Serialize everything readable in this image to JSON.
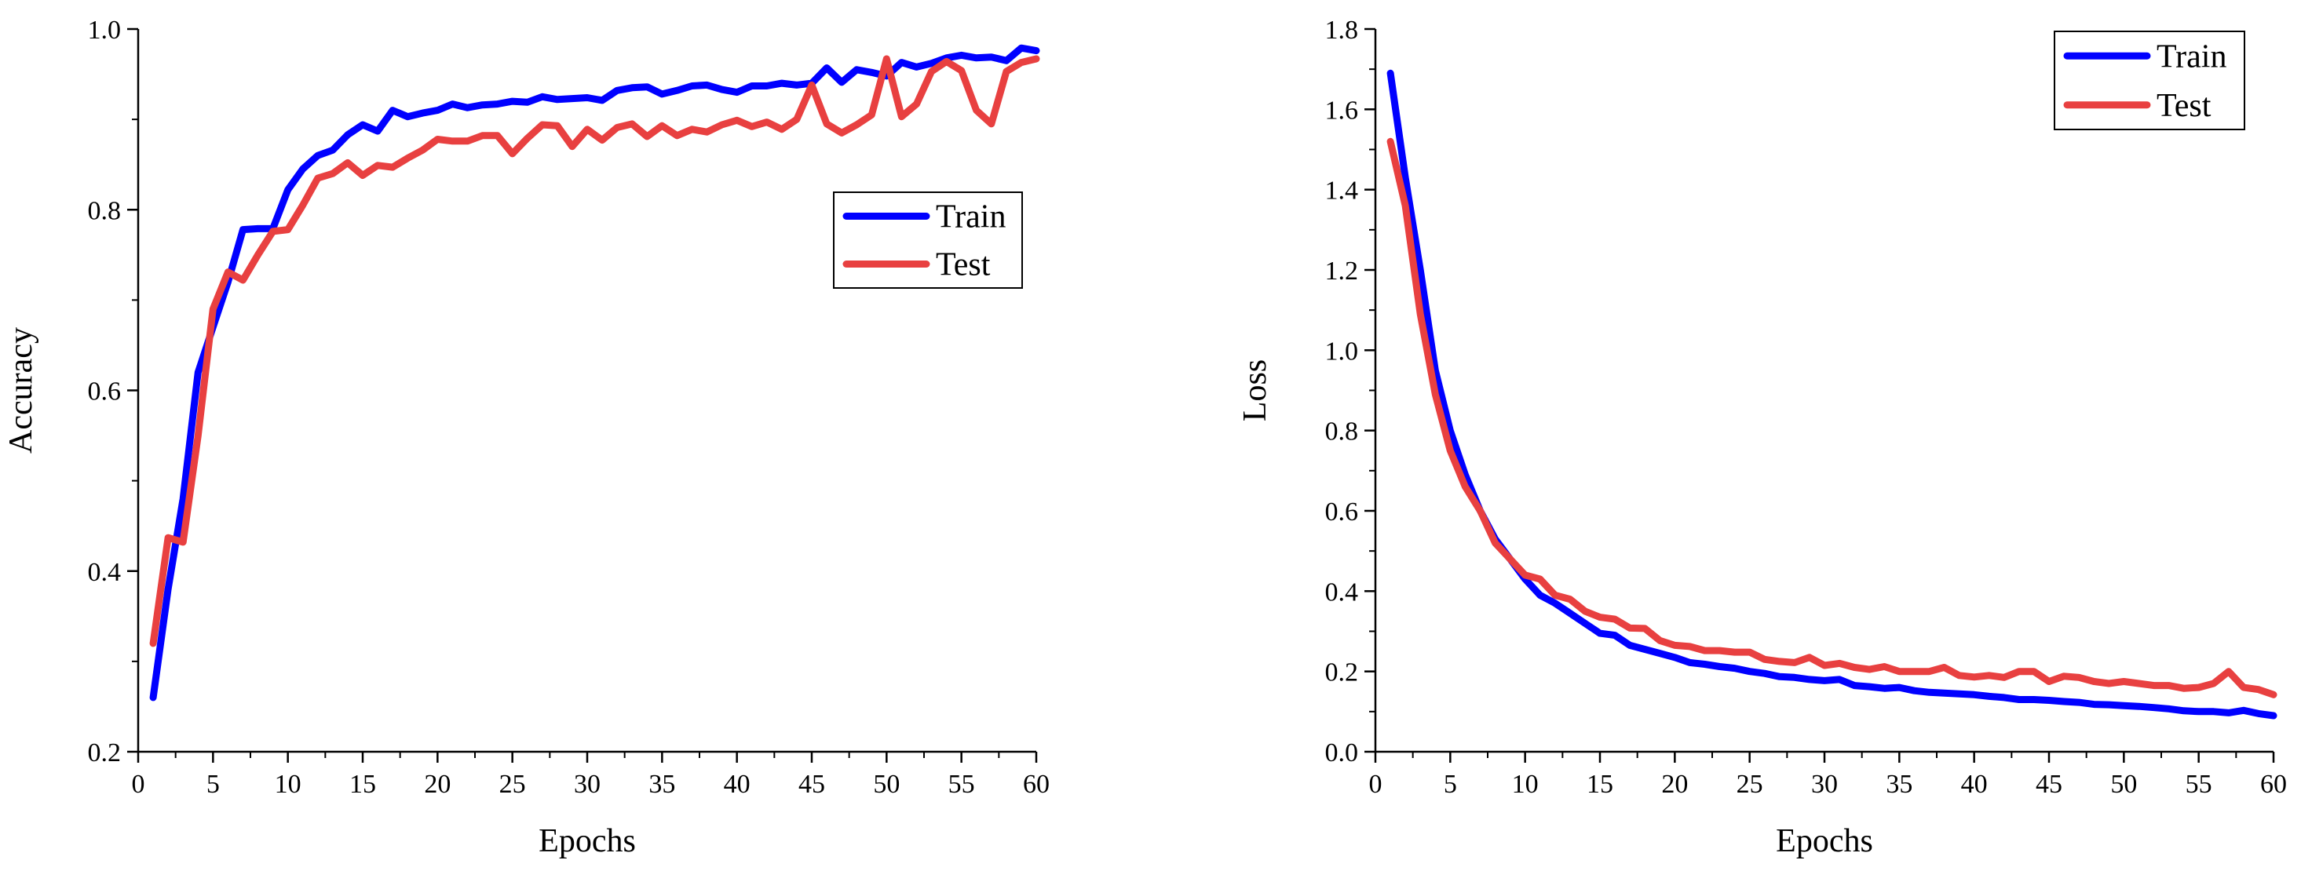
{
  "chart_data": [
    {
      "type": "line",
      "xlabel": "Epochs",
      "ylabel": "Accuracy",
      "xlim": [
        0,
        60
      ],
      "ylim": [
        0.2,
        1.0
      ],
      "x_ticks": [
        0,
        5,
        10,
        15,
        20,
        25,
        30,
        35,
        40,
        45,
        50,
        55,
        60
      ],
      "y_ticks": [
        0.2,
        0.4,
        0.6,
        0.8,
        1.0
      ],
      "x_tick_labels": [
        "0",
        "5",
        "10",
        "15",
        "20",
        "25",
        "30",
        "35",
        "40",
        "45",
        "50",
        "55",
        "60"
      ],
      "y_tick_labels": [
        "0.2",
        "0.4",
        "0.6",
        "0.8",
        "1.0"
      ],
      "grid": false,
      "legend_position": "right-center",
      "x": [
        1,
        2,
        3,
        4,
        5,
        6,
        7,
        8,
        9,
        10,
        11,
        12,
        13,
        14,
        15,
        16,
        17,
        18,
        19,
        20,
        21,
        22,
        23,
        24,
        25,
        26,
        27,
        28,
        29,
        30,
        31,
        32,
        33,
        34,
        35,
        36,
        37,
        38,
        39,
        40,
        41,
        42,
        43,
        44,
        45,
        46,
        47,
        48,
        49,
        50,
        51,
        52,
        53,
        54,
        55,
        56,
        57,
        58,
        59,
        60
      ],
      "series": [
        {
          "name": "Train",
          "color": "#0000ff",
          "values": [
            0.26,
            0.38,
            0.48,
            0.62,
            0.67,
            0.72,
            0.778,
            0.779,
            0.779,
            0.822,
            0.845,
            0.86,
            0.866,
            0.883,
            0.894,
            0.887,
            0.91,
            0.903,
            0.907,
            0.91,
            0.917,
            0.913,
            0.916,
            0.917,
            0.92,
            0.919,
            0.925,
            0.922,
            0.923,
            0.924,
            0.921,
            0.932,
            0.935,
            0.936,
            0.928,
            0.932,
            0.937,
            0.938,
            0.933,
            0.93,
            0.937,
            0.937,
            0.94,
            0.938,
            0.94,
            0.957,
            0.941,
            0.955,
            0.952,
            0.948,
            0.963,
            0.958,
            0.962,
            0.968,
            0.971,
            0.968,
            0.969,
            0.965,
            0.979,
            0.976
          ]
        },
        {
          "name": "Test",
          "color": "#e84040",
          "values": [
            0.32,
            0.437,
            0.432,
            0.55,
            0.69,
            0.731,
            0.722,
            0.75,
            0.776,
            0.778,
            0.805,
            0.835,
            0.84,
            0.852,
            0.838,
            0.849,
            0.847,
            0.857,
            0.866,
            0.878,
            0.876,
            0.876,
            0.882,
            0.882,
            0.862,
            0.879,
            0.894,
            0.893,
            0.87,
            0.889,
            0.877,
            0.891,
            0.895,
            0.881,
            0.893,
            0.882,
            0.889,
            0.886,
            0.894,
            0.899,
            0.892,
            0.897,
            0.889,
            0.9,
            0.938,
            0.895,
            0.885,
            0.894,
            0.905,
            0.967,
            0.903,
            0.917,
            0.953,
            0.964,
            0.954,
            0.91,
            0.895,
            0.953,
            0.963,
            0.967
          ]
        }
      ]
    },
    {
      "type": "line",
      "xlabel": "Epochs",
      "ylabel": "Loss",
      "xlim": [
        0,
        60
      ],
      "ylim": [
        0.0,
        1.8
      ],
      "x_ticks": [
        0,
        5,
        10,
        15,
        20,
        25,
        30,
        35,
        40,
        45,
        50,
        55,
        60
      ],
      "y_ticks": [
        0.0,
        0.2,
        0.4,
        0.6,
        0.8,
        1.0,
        1.2,
        1.4,
        1.6,
        1.8
      ],
      "x_tick_labels": [
        "0",
        "5",
        "10",
        "15",
        "20",
        "25",
        "30",
        "35",
        "40",
        "45",
        "50",
        "55",
        "60"
      ],
      "y_tick_labels": [
        "0.0",
        "0.2",
        "0.4",
        "0.6",
        "0.8",
        "1.0",
        "1.2",
        "1.4",
        "1.6",
        "1.8"
      ],
      "grid": false,
      "legend_position": "top-right",
      "x": [
        1,
        2,
        3,
        4,
        5,
        6,
        7,
        8,
        9,
        10,
        11,
        12,
        13,
        14,
        15,
        16,
        17,
        18,
        19,
        20,
        21,
        22,
        23,
        24,
        25,
        26,
        27,
        28,
        29,
        30,
        31,
        32,
        33,
        34,
        35,
        36,
        37,
        38,
        39,
        40,
        41,
        42,
        43,
        44,
        45,
        46,
        47,
        48,
        49,
        50,
        51,
        52,
        53,
        54,
        55,
        56,
        57,
        58,
        59,
        60
      ],
      "series": [
        {
          "name": "Train",
          "color": "#0000ff",
          "values": [
            1.69,
            1.43,
            1.2,
            0.95,
            0.8,
            0.69,
            0.6,
            0.53,
            0.48,
            0.43,
            0.39,
            0.37,
            0.345,
            0.32,
            0.295,
            0.29,
            0.265,
            0.255,
            0.245,
            0.235,
            0.222,
            0.218,
            0.212,
            0.208,
            0.2,
            0.195,
            0.187,
            0.185,
            0.18,
            0.177,
            0.18,
            0.165,
            0.162,
            0.158,
            0.16,
            0.152,
            0.148,
            0.146,
            0.144,
            0.142,
            0.138,
            0.135,
            0.13,
            0.13,
            0.128,
            0.125,
            0.123,
            0.118,
            0.117,
            0.115,
            0.113,
            0.11,
            0.107,
            0.102,
            0.1,
            0.1,
            0.097,
            0.103,
            0.095,
            0.09
          ]
        },
        {
          "name": "Test",
          "color": "#e84040",
          "values": [
            1.52,
            1.36,
            1.09,
            0.89,
            0.75,
            0.66,
            0.6,
            0.52,
            0.48,
            0.44,
            0.43,
            0.39,
            0.38,
            0.35,
            0.335,
            0.33,
            0.308,
            0.307,
            0.277,
            0.265,
            0.262,
            0.252,
            0.252,
            0.248,
            0.248,
            0.23,
            0.225,
            0.222,
            0.235,
            0.215,
            0.22,
            0.21,
            0.205,
            0.212,
            0.2,
            0.2,
            0.2,
            0.21,
            0.19,
            0.186,
            0.19,
            0.185,
            0.2,
            0.2,
            0.175,
            0.188,
            0.185,
            0.175,
            0.17,
            0.175,
            0.17,
            0.165,
            0.165,
            0.158,
            0.16,
            0.17,
            0.2,
            0.16,
            0.155,
            0.142
          ]
        }
      ]
    }
  ]
}
